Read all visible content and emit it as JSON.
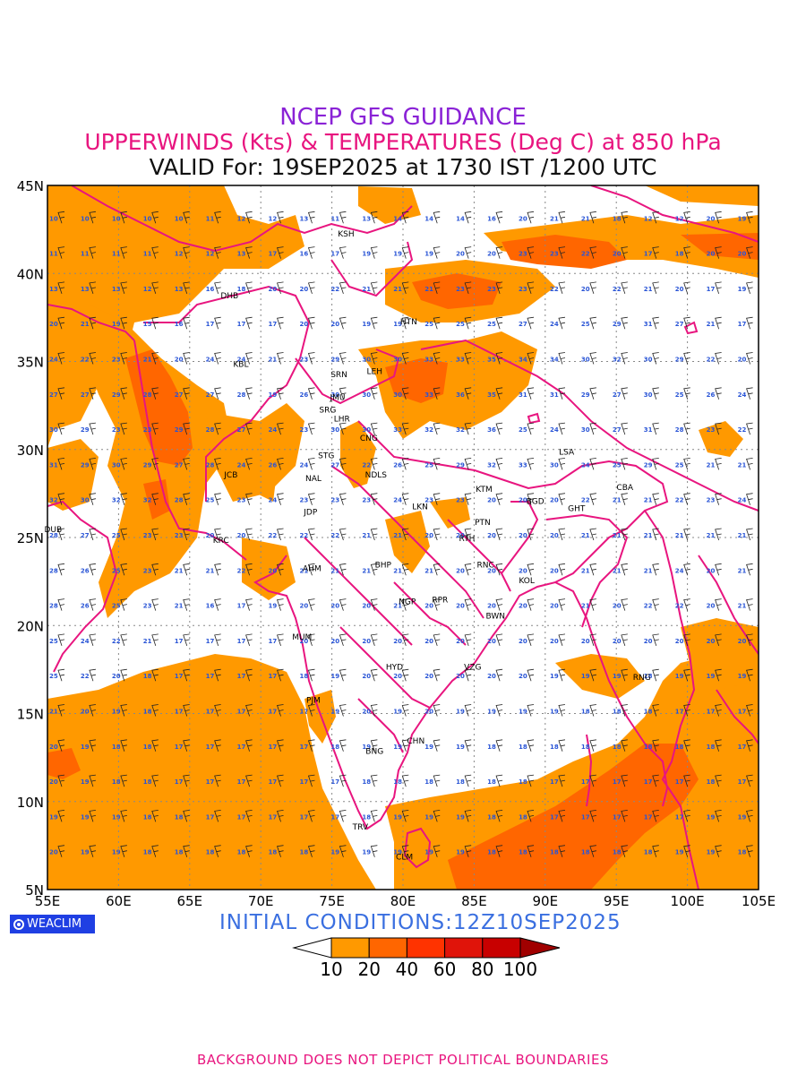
{
  "header": {
    "line1": "NCEP GFS GUIDANCE",
    "line2": "UPPERWINDS (Kts) & TEMPERATURES (Deg C) at 850 hPa",
    "line3": "VALID For: 19SEP2025 at 1730 IST /1200 UTC"
  },
  "axes": {
    "lat_labels": [
      "45N",
      "40N",
      "35N",
      "30N",
      "25N",
      "20N",
      "15N",
      "10N",
      "5N"
    ],
    "lon_labels": [
      "55E",
      "60E",
      "65E",
      "70E",
      "75E",
      "80E",
      "85E",
      "90E",
      "95E",
      "100E",
      "105E"
    ],
    "lat_values": [
      45,
      40,
      35,
      30,
      25,
      20,
      15,
      10,
      5
    ],
    "lon_values": [
      55,
      60,
      65,
      70,
      75,
      80,
      85,
      90,
      95,
      100,
      105
    ]
  },
  "colors": {
    "shade_10_20": "#ff9900",
    "shade_20_40": "#ff6600",
    "border": "#e8157f",
    "temp_text": "#2a55d6",
    "grid": "#888888"
  },
  "stations": [
    {
      "code": "KSH",
      "lon": 76.0,
      "lat": 42.1
    },
    {
      "code": "DHB",
      "lon": 67.8,
      "lat": 38.6
    },
    {
      "code": "HTN",
      "lon": 80.4,
      "lat": 37.1
    },
    {
      "code": "KBL",
      "lon": 68.6,
      "lat": 34.7
    },
    {
      "code": "SRN",
      "lon": 75.5,
      "lat": 34.1
    },
    {
      "code": "LEH",
      "lon": 78.0,
      "lat": 34.3
    },
    {
      "code": "JMU",
      "lon": 75.4,
      "lat": 32.8
    },
    {
      "code": "SRG",
      "lon": 74.7,
      "lat": 32.1
    },
    {
      "code": "LHR",
      "lon": 75.7,
      "lat": 31.6
    },
    {
      "code": "CNG",
      "lon": 77.6,
      "lat": 30.5
    },
    {
      "code": "STG",
      "lon": 74.6,
      "lat": 29.5
    },
    {
      "code": "LSA",
      "lon": 91.5,
      "lat": 29.7
    },
    {
      "code": "JCB",
      "lon": 67.9,
      "lat": 28.4
    },
    {
      "code": "NAL",
      "lon": 73.7,
      "lat": 28.2
    },
    {
      "code": "NDLS",
      "lon": 78.1,
      "lat": 28.4
    },
    {
      "code": "KTM",
      "lon": 85.7,
      "lat": 27.6
    },
    {
      "code": "CBA",
      "lon": 95.6,
      "lat": 27.7
    },
    {
      "code": "LKN",
      "lon": 81.2,
      "lat": 26.6
    },
    {
      "code": "BGD",
      "lon": 89.3,
      "lat": 26.9
    },
    {
      "code": "GHT",
      "lon": 92.2,
      "lat": 26.5
    },
    {
      "code": "JDP",
      "lon": 73.5,
      "lat": 26.3
    },
    {
      "code": "PTN",
      "lon": 85.6,
      "lat": 25.7
    },
    {
      "code": "DUB",
      "lon": 55.4,
      "lat": 25.3
    },
    {
      "code": "KRC",
      "lon": 67.2,
      "lat": 24.7
    },
    {
      "code": "RTH",
      "lon": 84.5,
      "lat": 24.8
    },
    {
      "code": "BHP",
      "lon": 78.6,
      "lat": 23.3
    },
    {
      "code": "RNC",
      "lon": 85.8,
      "lat": 23.3
    },
    {
      "code": "AHM",
      "lon": 73.6,
      "lat": 23.1
    },
    {
      "code": "KOL",
      "lon": 88.7,
      "lat": 22.4
    },
    {
      "code": "NGP",
      "lon": 80.3,
      "lat": 21.2
    },
    {
      "code": "RPR",
      "lon": 82.6,
      "lat": 21.3
    },
    {
      "code": "BWN",
      "lon": 86.5,
      "lat": 20.4
    },
    {
      "code": "MUM",
      "lon": 72.9,
      "lat": 19.2
    },
    {
      "code": "HYD",
      "lon": 79.4,
      "lat": 17.5
    },
    {
      "code": "VZG",
      "lon": 84.9,
      "lat": 17.5
    },
    {
      "code": "RNG",
      "lon": 96.8,
      "lat": 16.9
    },
    {
      "code": "PJM",
      "lon": 73.7,
      "lat": 15.6
    },
    {
      "code": "CHN",
      "lon": 80.9,
      "lat": 13.3
    },
    {
      "code": "BNG",
      "lon": 78.0,
      "lat": 12.7
    },
    {
      "code": "TRV",
      "lon": 77.0,
      "lat": 8.4
    },
    {
      "code": "CLM",
      "lon": 80.1,
      "lat": 6.7
    }
  ],
  "temperature_rows": [
    {
      "lat": 43,
      "values": [
        10,
        10,
        10,
        10,
        10,
        11,
        12,
        12,
        13,
        11,
        13,
        14,
        14,
        14,
        16,
        20,
        21,
        21,
        18,
        12,
        12,
        20,
        19
      ]
    },
    {
      "lat": 41,
      "values": [
        11,
        11,
        11,
        11,
        12,
        12,
        13,
        17,
        16,
        17,
        19,
        19,
        19,
        20,
        20,
        23,
        23,
        22,
        20,
        17,
        18,
        20,
        20
      ]
    },
    {
      "lat": 39,
      "values": [
        13,
        13,
        13,
        12,
        13,
        16,
        18,
        20,
        20,
        22,
        21,
        21,
        21,
        23,
        23,
        23,
        22,
        20,
        22,
        21,
        20,
        17,
        19
      ]
    },
    {
      "lat": 37,
      "values": [
        20,
        21,
        19,
        15,
        16,
        17,
        17,
        17,
        20,
        20,
        19,
        19,
        25,
        25,
        25,
        27,
        24,
        25,
        29,
        31,
        27,
        21,
        17
      ]
    },
    {
      "lat": 35,
      "values": [
        24,
        22,
        23,
        21,
        20,
        24,
        24,
        21,
        23,
        29,
        30,
        30,
        33,
        33,
        35,
        34,
        34,
        30,
        32,
        30,
        29,
        22,
        20
      ]
    },
    {
      "lat": 33,
      "values": [
        27,
        27,
        29,
        28,
        27,
        27,
        28,
        19,
        26,
        30,
        30,
        30,
        33,
        36,
        35,
        31,
        31,
        29,
        27,
        30,
        25,
        26,
        24
      ]
    },
    {
      "lat": 31,
      "values": [
        30,
        29,
        23,
        23,
        29,
        28,
        27,
        24,
        23,
        30,
        30,
        33,
        32,
        32,
        36,
        25,
        24,
        30,
        27,
        31,
        28,
        23,
        22
      ]
    },
    {
      "lat": 29,
      "values": [
        31,
        29,
        30,
        29,
        27,
        28,
        24,
        26,
        24,
        27,
        22,
        26,
        25,
        29,
        32,
        33,
        30,
        24,
        25,
        29,
        25,
        21,
        21
      ]
    },
    {
      "lat": 27,
      "values": [
        32,
        30,
        32,
        32,
        28,
        25,
        23,
        24,
        23,
        23,
        23,
        24,
        23,
        23,
        20,
        20,
        20,
        22,
        21,
        21,
        22,
        23,
        24
      ]
    },
    {
      "lat": 25,
      "values": [
        28,
        27,
        25,
        23,
        23,
        20,
        20,
        22,
        22,
        22,
        21,
        21,
        20,
        20,
        20,
        20,
        20,
        21,
        21,
        21,
        21,
        21,
        21
      ]
    },
    {
      "lat": 23,
      "values": [
        28,
        26,
        25,
        23,
        21,
        21,
        22,
        20,
        21,
        21,
        21,
        21,
        21,
        20,
        20,
        20,
        20,
        21,
        21,
        21,
        24,
        20,
        21
      ]
    },
    {
      "lat": 21,
      "values": [
        28,
        26,
        25,
        23,
        21,
        16,
        17,
        19,
        20,
        20,
        20,
        21,
        20,
        20,
        20,
        20,
        20,
        21,
        20,
        22,
        22,
        20,
        21
      ]
    },
    {
      "lat": 19,
      "values": [
        25,
        24,
        22,
        21,
        17,
        17,
        17,
        17,
        20,
        20,
        20,
        20,
        20,
        20,
        20,
        20,
        20,
        20,
        20,
        20,
        20,
        20,
        20
      ]
    },
    {
      "lat": 17,
      "values": [
        25,
        22,
        20,
        18,
        17,
        17,
        17,
        17,
        18,
        19,
        20,
        20,
        20,
        20,
        20,
        20,
        19,
        19,
        19,
        18,
        19,
        19,
        19
      ]
    },
    {
      "lat": 15,
      "values": [
        21,
        20,
        19,
        18,
        17,
        17,
        17,
        17,
        17,
        19,
        20,
        19,
        20,
        19,
        19,
        19,
        19,
        18,
        18,
        18,
        17,
        17,
        17
      ]
    },
    {
      "lat": 13,
      "values": [
        20,
        19,
        18,
        18,
        17,
        17,
        17,
        17,
        17,
        18,
        19,
        19,
        19,
        19,
        18,
        18,
        18,
        18,
        18,
        18,
        18,
        18,
        17
      ]
    },
    {
      "lat": 11,
      "values": [
        20,
        19,
        18,
        18,
        17,
        17,
        17,
        17,
        17,
        17,
        18,
        18,
        18,
        18,
        18,
        18,
        17,
        17,
        17,
        17,
        17,
        18,
        17
      ]
    },
    {
      "lat": 9,
      "values": [
        19,
        19,
        19,
        18,
        18,
        17,
        17,
        17,
        17,
        17,
        18,
        19,
        19,
        19,
        18,
        18,
        17,
        17,
        17,
        17,
        17,
        19,
        19
      ]
    },
    {
      "lat": 7,
      "values": [
        20,
        19,
        19,
        18,
        18,
        18,
        18,
        18,
        18,
        19,
        19,
        19,
        19,
        19,
        18,
        18,
        18,
        18,
        18,
        18,
        19,
        19,
        18
      ]
    }
  ],
  "initial_conditions": "INITIAL  CONDITIONS:12Z10SEP2025",
  "legend": {
    "labels": [
      "10",
      "20",
      "40",
      "60",
      "80",
      "100"
    ],
    "colors": [
      "#ff9900",
      "#ff6600",
      "#ff3300",
      "#e0140a",
      "#c80000",
      "#a00000"
    ]
  },
  "logo_text": "WEACLIM",
  "footer": "BACKGROUND DOES NOT DEPICT POLITICAL BOUNDARIES"
}
